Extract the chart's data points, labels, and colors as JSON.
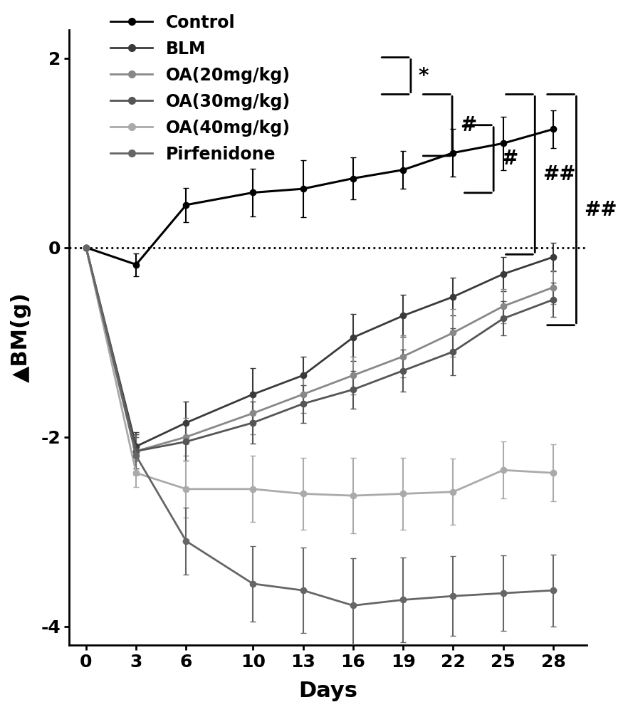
{
  "days": [
    0,
    3,
    6,
    10,
    13,
    16,
    19,
    22,
    25,
    28
  ],
  "series": {
    "Control": {
      "color": "#000000",
      "linewidth": 2.2,
      "values": [
        0,
        -0.18,
        0.45,
        0.58,
        0.62,
        0.73,
        0.82,
        1.0,
        1.1,
        1.25
      ],
      "errors": [
        0,
        0.12,
        0.18,
        0.25,
        0.3,
        0.22,
        0.2,
        0.25,
        0.28,
        0.2
      ]
    },
    "BLM": {
      "color": "#3a3a3a",
      "linewidth": 2.0,
      "values": [
        0,
        -2.1,
        -1.85,
        -1.55,
        -1.35,
        -0.95,
        -0.72,
        -0.52,
        -0.28,
        -0.1
      ],
      "errors": [
        0,
        0.15,
        0.22,
        0.28,
        0.2,
        0.25,
        0.22,
        0.2,
        0.18,
        0.15
      ]
    },
    "OA20": {
      "color": "#888888",
      "linewidth": 2.0,
      "values": [
        0,
        -2.15,
        -2.0,
        -1.75,
        -1.55,
        -1.35,
        -1.15,
        -0.9,
        -0.62,
        -0.42
      ],
      "errors": [
        0,
        0.18,
        0.2,
        0.22,
        0.2,
        0.2,
        0.22,
        0.25,
        0.18,
        0.18
      ]
    },
    "OA30": {
      "color": "#555555",
      "linewidth": 2.0,
      "values": [
        0,
        -2.15,
        -2.05,
        -1.85,
        -1.65,
        -1.5,
        -1.3,
        -1.1,
        -0.75,
        -0.55
      ],
      "errors": [
        0,
        0.18,
        0.2,
        0.22,
        0.2,
        0.2,
        0.22,
        0.25,
        0.18,
        0.18
      ]
    },
    "OA40": {
      "color": "#aaaaaa",
      "linewidth": 2.0,
      "values": [
        0,
        -2.38,
        -2.55,
        -2.55,
        -2.6,
        -2.62,
        -2.6,
        -2.58,
        -2.35,
        -2.38
      ],
      "errors": [
        0,
        0.15,
        0.3,
        0.35,
        0.38,
        0.4,
        0.38,
        0.35,
        0.3,
        0.3
      ]
    },
    "Pirfenidone": {
      "color": "#666666",
      "linewidth": 2.0,
      "values": [
        0,
        -2.2,
        -3.1,
        -3.55,
        -3.62,
        -3.78,
        -3.72,
        -3.68,
        -3.65,
        -3.62
      ],
      "errors": [
        0,
        0.2,
        0.35,
        0.4,
        0.45,
        0.5,
        0.45,
        0.42,
        0.4,
        0.38
      ]
    }
  },
  "ylim": [
    -4.2,
    2.3
  ],
  "yticks": [
    -4,
    -2,
    0,
    2
  ],
  "xlabel": "Days",
  "ylabel": "▲BM(g)",
  "legend_labels": [
    "Control",
    "BLM",
    "OA(20mg/kg)",
    "OA(30mg/kg)",
    "OA(40mg/kg)",
    "Pirfenidone"
  ],
  "legend_colors": [
    "#000000",
    "#3a3a3a",
    "#888888",
    "#555555",
    "#aaaaaa",
    "#666666"
  ]
}
